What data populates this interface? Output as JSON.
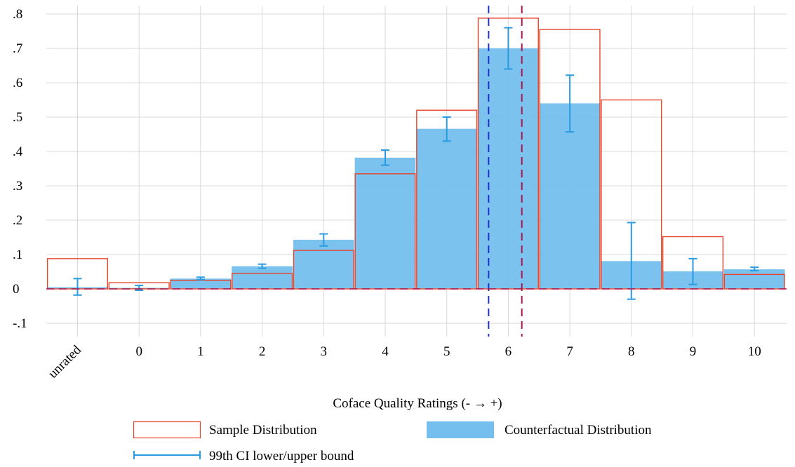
{
  "chart_data": {
    "type": "bar",
    "title": "",
    "xlabel": "Coface Quality Ratings (- → +)",
    "ylabel": "",
    "ylim": [
      -0.1,
      0.8
    ],
    "y_ticks": [
      -0.1,
      0,
      0.1,
      0.2,
      0.3,
      0.4,
      0.5,
      0.6,
      0.7,
      0.8
    ],
    "y_tick_labels": [
      "-.1",
      "0",
      ".1",
      ".2",
      ".3",
      ".4",
      ".5",
      ".6",
      ".7",
      ".8"
    ],
    "categories": [
      "unrated",
      "0",
      "1",
      "2",
      "3",
      "4",
      "5",
      "6",
      "7",
      "8",
      "9",
      "10"
    ],
    "series": [
      {
        "name": "Sample Distribution",
        "style": "outline",
        "color": "#e8442c",
        "values": [
          0.088,
          0.018,
          0.025,
          0.045,
          0.112,
          0.335,
          0.52,
          0.788,
          0.755,
          0.55,
          0.152,
          0.042
        ]
      },
      {
        "name": "Counterfactual Distribution",
        "style": "filled",
        "color": "#74bfee",
        "values": [
          0.005,
          0.003,
          0.03,
          0.066,
          0.143,
          0.382,
          0.466,
          0.7,
          0.54,
          0.081,
          0.051,
          0.057
        ]
      }
    ],
    "ci": {
      "name": "99th CI lower/upper bound",
      "color": "#2a9be0",
      "lower": [
        -0.018,
        -0.004,
        0.027,
        0.06,
        0.125,
        0.36,
        0.43,
        0.64,
        0.457,
        -0.03,
        0.013,
        0.053
      ],
      "upper": [
        0.03,
        0.01,
        0.034,
        0.072,
        0.16,
        0.404,
        0.5,
        0.76,
        0.622,
        0.193,
        0.088,
        0.063
      ]
    },
    "reference_lines": [
      {
        "axis": "x",
        "value": 5.68,
        "color": "#1f2fd0",
        "style": "dashed"
      },
      {
        "axis": "x",
        "value": 6.22,
        "color": "#b0124e",
        "style": "dashed"
      },
      {
        "axis": "y",
        "value": 0,
        "color": "#b0124e",
        "style": "dashed"
      }
    ],
    "grid": true,
    "legend_position": "bottom",
    "legend": [
      {
        "label": "Sample Distribution",
        "swatch": "outline"
      },
      {
        "label": "Counterfactual Distribution",
        "swatch": "filled"
      },
      {
        "label": "99th CI lower/upper bound",
        "swatch": "errorbar"
      }
    ]
  }
}
